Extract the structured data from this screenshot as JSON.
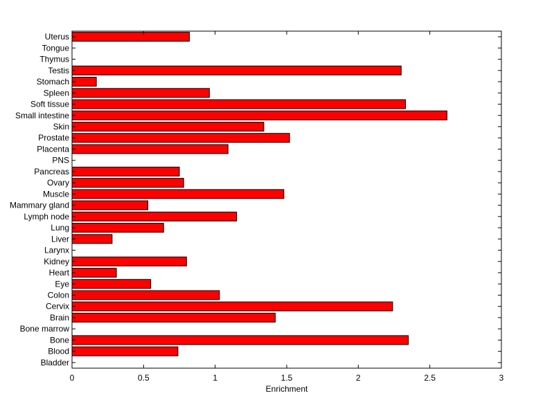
{
  "chart_data": {
    "type": "bar",
    "orientation": "horizontal",
    "title": "",
    "xlabel": "Enrichment",
    "ylabel": "",
    "xlim": [
      0,
      3
    ],
    "xticks": [
      "0",
      "0.5",
      "1",
      "1.5",
      "2",
      "2.5",
      "3"
    ],
    "grid": false,
    "legend": "none",
    "bar_color": "#ff0000",
    "categories": [
      "Bladder",
      "Blood",
      "Bone",
      "Bone marrow",
      "Brain",
      "Cervix",
      "Colon",
      "Eye",
      "Heart",
      "Kidney",
      "Larynx",
      "Liver",
      "Lung",
      "Lymph node",
      "Mammary gland",
      "Muscle",
      "Ovary",
      "Pancreas",
      "PNS",
      "Placenta",
      "Prostate",
      "Skin",
      "Small intestine",
      "Soft tissue",
      "Spleen",
      "Stomach",
      "Testis",
      "Thymus",
      "Tongue",
      "Uterus"
    ],
    "values": [
      0,
      0.74,
      2.35,
      0,
      1.42,
      2.24,
      1.03,
      0.55,
      0.31,
      0.8,
      0,
      0.28,
      0.64,
      1.15,
      0.53,
      1.48,
      0.78,
      0.75,
      0,
      1.09,
      1.52,
      1.34,
      2.62,
      2.33,
      0.96,
      0.17,
      2.3,
      0,
      0,
      0.82
    ]
  }
}
